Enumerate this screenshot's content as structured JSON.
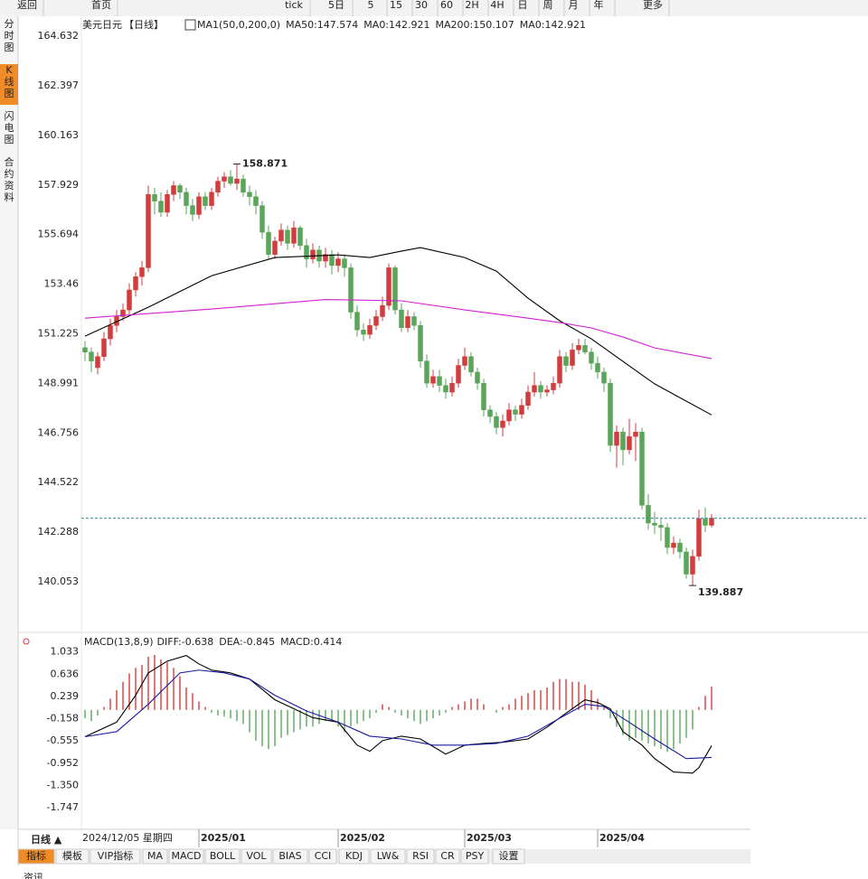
{
  "toolbar": [
    "返回",
    "首页",
    "tick",
    "5日",
    "5",
    "15",
    "30",
    "60",
    "2H",
    "4H",
    "日",
    "周",
    "月",
    "年",
    "更多"
  ],
  "sidebar": [
    "分时图",
    "K线图",
    "闪电图",
    "合约资料"
  ],
  "chart_data": [
    {
      "type": "candlestick",
      "symbol": "美元日元",
      "period": "【日线】",
      "indicator": "MA1(50,0,200,0)",
      "legend": [
        {
          "label": "MA50:147.574",
          "color": "#000000"
        },
        {
          "label": "MA0:142.921",
          "color": "#1a1aa0"
        },
        {
          "label": "MA200:150.107",
          "color": "#d020d0"
        },
        {
          "label": "MA0:142.921",
          "color": "#f08c28"
        }
      ],
      "up_color": "#d23c3c",
      "down_color": "#5aa55a",
      "last_color": "#3a8a9a",
      "ylim": [
        138.0,
        165.5
      ],
      "yticks": [
        164.632,
        162.397,
        160.163,
        157.929,
        155.694,
        153.46,
        151.225,
        148.991,
        146.756,
        144.522,
        142.288,
        140.053
      ],
      "candles": [
        [
          150.6,
          150.9,
          150.0,
          150.4
        ],
        [
          150.4,
          150.6,
          149.5,
          150.0
        ],
        [
          149.7,
          150.4,
          149.4,
          150.2
        ],
        [
          150.2,
          151.3,
          150.0,
          151.0
        ],
        [
          151.0,
          151.9,
          150.7,
          151.6
        ],
        [
          151.6,
          152.3,
          151.3,
          152.0
        ],
        [
          152.0,
          152.6,
          151.8,
          152.3
        ],
        [
          152.3,
          153.5,
          152.1,
          153.2
        ],
        [
          153.2,
          154.0,
          152.9,
          153.8
        ],
        [
          153.8,
          154.5,
          153.4,
          154.2
        ],
        [
          154.2,
          157.9,
          154.0,
          157.5
        ],
        [
          157.5,
          157.8,
          156.6,
          157.2
        ],
        [
          157.2,
          157.6,
          156.5,
          156.7
        ],
        [
          156.7,
          157.7,
          156.5,
          157.5
        ],
        [
          157.5,
          158.1,
          157.2,
          157.9
        ],
        [
          157.9,
          158.0,
          157.3,
          157.6
        ],
        [
          157.6,
          157.8,
          156.6,
          157.0
        ],
        [
          157.0,
          157.3,
          156.3,
          156.6
        ],
        [
          156.6,
          157.6,
          156.4,
          157.4
        ],
        [
          157.4,
          157.6,
          156.8,
          157.0
        ],
        [
          157.0,
          157.8,
          156.8,
          157.6
        ],
        [
          157.6,
          158.3,
          157.4,
          158.1
        ],
        [
          158.1,
          158.5,
          157.8,
          158.3
        ],
        [
          158.3,
          158.6,
          157.9,
          158.0
        ],
        [
          158.0,
          158.871,
          157.7,
          158.2
        ],
        [
          158.2,
          158.4,
          157.4,
          157.6
        ],
        [
          157.6,
          157.9,
          157.0,
          157.4
        ],
        [
          157.4,
          157.7,
          156.6,
          157.0
        ],
        [
          157.0,
          157.2,
          155.5,
          155.8
        ],
        [
          155.8,
          156.1,
          154.6,
          154.8
        ],
        [
          154.8,
          155.6,
          154.6,
          155.4
        ],
        [
          155.4,
          156.2,
          155.2,
          155.9
        ],
        [
          155.9,
          156.1,
          155.0,
          155.3
        ],
        [
          155.3,
          156.3,
          155.1,
          156.0
        ],
        [
          156.0,
          156.1,
          155.0,
          155.2
        ],
        [
          155.2,
          155.5,
          154.2,
          154.6
        ],
        [
          154.6,
          155.3,
          154.4,
          155.0
        ],
        [
          155.0,
          155.2,
          154.2,
          154.5
        ],
        [
          154.5,
          155.1,
          154.2,
          154.8
        ],
        [
          154.8,
          155.0,
          153.9,
          154.3
        ],
        [
          154.3,
          154.9,
          154.0,
          154.6
        ],
        [
          154.6,
          154.8,
          153.8,
          154.2
        ],
        [
          154.2,
          154.4,
          151.9,
          152.2
        ],
        [
          152.2,
          152.5,
          151.1,
          151.4
        ],
        [
          151.4,
          151.7,
          150.9,
          151.2
        ],
        [
          151.2,
          151.9,
          151.0,
          151.6
        ],
        [
          151.6,
          152.3,
          151.4,
          152.0
        ],
        [
          152.0,
          152.9,
          151.8,
          152.5
        ],
        [
          152.5,
          154.4,
          152.3,
          154.2
        ],
        [
          154.2,
          154.3,
          152.1,
          152.3
        ],
        [
          152.3,
          152.6,
          151.3,
          151.5
        ],
        [
          151.5,
          152.3,
          151.3,
          152.0
        ],
        [
          152.0,
          152.2,
          151.4,
          151.6
        ],
        [
          151.6,
          151.8,
          149.7,
          150.0
        ],
        [
          150.0,
          150.3,
          148.8,
          149.0
        ],
        [
          149.0,
          149.6,
          148.8,
          149.3
        ],
        [
          149.3,
          149.6,
          148.6,
          148.9
        ],
        [
          148.9,
          149.2,
          148.3,
          148.6
        ],
        [
          148.6,
          149.3,
          148.4,
          149.0
        ],
        [
          149.0,
          150.1,
          148.8,
          149.8
        ],
        [
          149.8,
          150.6,
          149.6,
          150.2
        ],
        [
          150.2,
          150.4,
          149.3,
          149.5
        ],
        [
          149.5,
          149.7,
          148.7,
          149.0
        ],
        [
          149.0,
          149.2,
          147.5,
          147.8
        ],
        [
          147.8,
          148.0,
          147.2,
          147.5
        ],
        [
          147.5,
          147.7,
          146.7,
          147.0
        ],
        [
          147.0,
          147.6,
          146.6,
          147.3
        ],
        [
          147.3,
          148.1,
          147.1,
          147.8
        ],
        [
          147.8,
          148.0,
          147.3,
          147.6
        ],
        [
          147.6,
          148.3,
          147.4,
          148.0
        ],
        [
          148.0,
          148.9,
          147.8,
          148.6
        ],
        [
          148.6,
          149.5,
          148.4,
          148.9
        ],
        [
          148.9,
          149.1,
          148.3,
          148.6
        ],
        [
          148.6,
          148.9,
          148.4,
          148.7
        ],
        [
          148.7,
          149.3,
          148.5,
          149.0
        ],
        [
          149.0,
          150.5,
          148.8,
          150.2
        ],
        [
          150.2,
          150.4,
          149.5,
          149.8
        ],
        [
          149.8,
          150.8,
          149.6,
          150.5
        ],
        [
          150.5,
          151.0,
          150.3,
          150.7
        ],
        [
          150.7,
          151.0,
          150.3,
          150.4
        ],
        [
          150.4,
          150.6,
          149.6,
          149.9
        ],
        [
          149.9,
          150.2,
          149.2,
          149.5
        ],
        [
          149.5,
          149.7,
          148.6,
          149.0
        ],
        [
          149.0,
          149.2,
          145.9,
          146.2
        ],
        [
          146.2,
          147.1,
          145.2,
          146.8
        ],
        [
          146.8,
          147.0,
          145.3,
          146.0
        ],
        [
          146.0,
          147.4,
          145.8,
          146.6
        ],
        [
          146.6,
          147.2,
          145.5,
          146.8
        ],
        [
          146.8,
          147.0,
          143.3,
          143.5
        ],
        [
          143.5,
          144.0,
          142.4,
          142.7
        ],
        [
          142.7,
          143.2,
          142.2,
          142.6
        ],
        [
          142.6,
          142.9,
          141.9,
          142.5
        ],
        [
          142.5,
          142.7,
          141.3,
          141.6
        ],
        [
          141.6,
          142.1,
          141.3,
          141.8
        ],
        [
          141.8,
          142.0,
          141.1,
          141.4
        ],
        [
          141.4,
          141.6,
          140.2,
          140.4
        ],
        [
          140.4,
          141.5,
          139.887,
          141.2
        ],
        [
          141.2,
          143.3,
          141.0,
          142.9
        ],
        [
          142.9,
          143.4,
          142.3,
          142.6
        ],
        [
          142.6,
          143.1,
          142.5,
          142.921
        ]
      ],
      "series": [
        {
          "color": "#000000",
          "x": [
            0,
            10,
            20,
            30,
            40,
            45,
            50,
            53,
            60,
            65,
            70,
            75,
            80,
            85,
            90,
            99
          ],
          "values": [
            151.12,
            152.42,
            153.84,
            154.66,
            154.78,
            154.66,
            154.95,
            155.11,
            154.66,
            154.05,
            152.83,
            151.81,
            151.0,
            149.98,
            148.97,
            147.57
          ]
        },
        {
          "color": "#d020d0",
          "x": [
            0,
            20,
            38,
            50,
            60,
            70,
            75,
            80,
            85,
            90,
            99
          ],
          "values": [
            151.93,
            152.34,
            152.77,
            152.71,
            152.3,
            151.93,
            151.73,
            151.49,
            151.08,
            150.59,
            150.11
          ]
        }
      ]
    },
    {
      "type": "macd",
      "title": "MACD(13,8,9)",
      "legend": [
        {
          "label": "DIFF:-0.638",
          "color": "#000000"
        },
        {
          "label": "DEA:-0.845",
          "color": "#1a1aa0"
        },
        {
          "label": "MACD:0.414",
          "color": "#d020d0"
        }
      ],
      "ylim": [
        -2.03,
        1.19
      ],
      "yticks": [
        1.033,
        0.636,
        0.239,
        -0.158,
        -0.555,
        -0.952,
        {
          "value": -1.35,
          "label": "-1.350"
        },
        -1.747
      ],
      "series": [
        {
          "color": "#000000",
          "x": [
            0,
            5,
            8,
            10,
            13,
            16,
            18,
            20,
            23,
            26,
            30,
            33,
            36,
            40,
            43,
            45,
            47,
            50,
            53,
            57,
            60,
            63,
            66,
            70,
            73,
            76,
            79,
            81,
            83,
            85,
            88,
            90,
            93,
            96,
            97,
            99
          ],
          "values": [
            -0.48,
            -0.22,
            0.26,
            0.66,
            0.87,
            0.97,
            0.82,
            0.71,
            0.66,
            0.55,
            0.18,
            0.02,
            -0.14,
            -0.22,
            -0.63,
            -0.74,
            -0.55,
            -0.47,
            -0.52,
            -0.79,
            -0.63,
            -0.6,
            -0.58,
            -0.52,
            -0.31,
            -0.06,
            0.18,
            0.13,
            0.02,
            -0.39,
            -0.63,
            -0.87,
            -1.11,
            -1.13,
            -1.03,
            -0.64
          ]
        },
        {
          "color": "#1a1aa0",
          "x": [
            0,
            5,
            10,
            15,
            18,
            22,
            26,
            30,
            35,
            40,
            45,
            50,
            55,
            60,
            65,
            70,
            75,
            79,
            82,
            85,
            90,
            95,
            99
          ],
          "values": [
            -0.48,
            -0.39,
            0.1,
            0.66,
            0.71,
            0.66,
            0.55,
            0.26,
            -0.02,
            -0.22,
            -0.47,
            -0.52,
            -0.63,
            -0.63,
            -0.6,
            -0.47,
            -0.15,
            0.1,
            0.06,
            -0.15,
            -0.52,
            -0.87,
            -0.85
          ]
        }
      ],
      "histogram": {
        "up_color": "#d23c3c",
        "down_color": "#5aa55a",
        "values": [
          -0.15,
          -0.2,
          -0.1,
          0.05,
          0.2,
          0.35,
          0.5,
          0.65,
          0.75,
          0.8,
          0.95,
          0.98,
          0.9,
          0.85,
          0.75,
          0.6,
          0.4,
          0.3,
          0.15,
          0.05,
          -0.05,
          -0.1,
          -0.12,
          -0.15,
          -0.2,
          -0.25,
          -0.4,
          -0.55,
          -0.65,
          -0.7,
          -0.65,
          -0.5,
          -0.45,
          -0.4,
          -0.35,
          -0.3,
          -0.3,
          -0.25,
          -0.2,
          -0.2,
          -0.3,
          -0.4,
          -0.3,
          -0.25,
          -0.2,
          -0.15,
          -0.05,
          0.1,
          0.05,
          -0.05,
          -0.1,
          -0.15,
          -0.2,
          -0.25,
          -0.2,
          -0.15,
          -0.1,
          -0.05,
          0.05,
          0.1,
          0.15,
          0.2,
          0.2,
          0.1,
          0.0,
          -0.05,
          0.05,
          0.1,
          0.2,
          0.25,
          0.3,
          0.35,
          0.35,
          0.4,
          0.5,
          0.55,
          0.55,
          0.5,
          0.5,
          0.45,
          0.35,
          0.2,
          0.05,
          -0.15,
          -0.3,
          -0.45,
          -0.55,
          -0.5,
          -0.55,
          -0.6,
          -0.65,
          -0.7,
          -0.75,
          -0.7,
          -0.6,
          -0.5,
          -0.35,
          0.05,
          0.25,
          0.414
        ]
      }
    }
  ],
  "x_axis": {
    "start_label": "2024/12/05 星期四",
    "ticks": [
      {
        "value": 18,
        "label": "2025/01"
      },
      {
        "value": 40,
        "label": "2025/02"
      },
      {
        "value": 60,
        "label": "2025/03"
      },
      {
        "value": 81,
        "label": "2025/04"
      }
    ]
  },
  "period_button": "日线 ▲",
  "tabs": [
    "指标",
    "模板",
    "VIP指标",
    "MA",
    "MACD",
    "BOLL",
    "VOL",
    "BIAS",
    "CCI",
    "KDJ",
    "LW&",
    "RSI",
    "CR",
    "PSY",
    "设置"
  ],
  "footer": "资讯"
}
